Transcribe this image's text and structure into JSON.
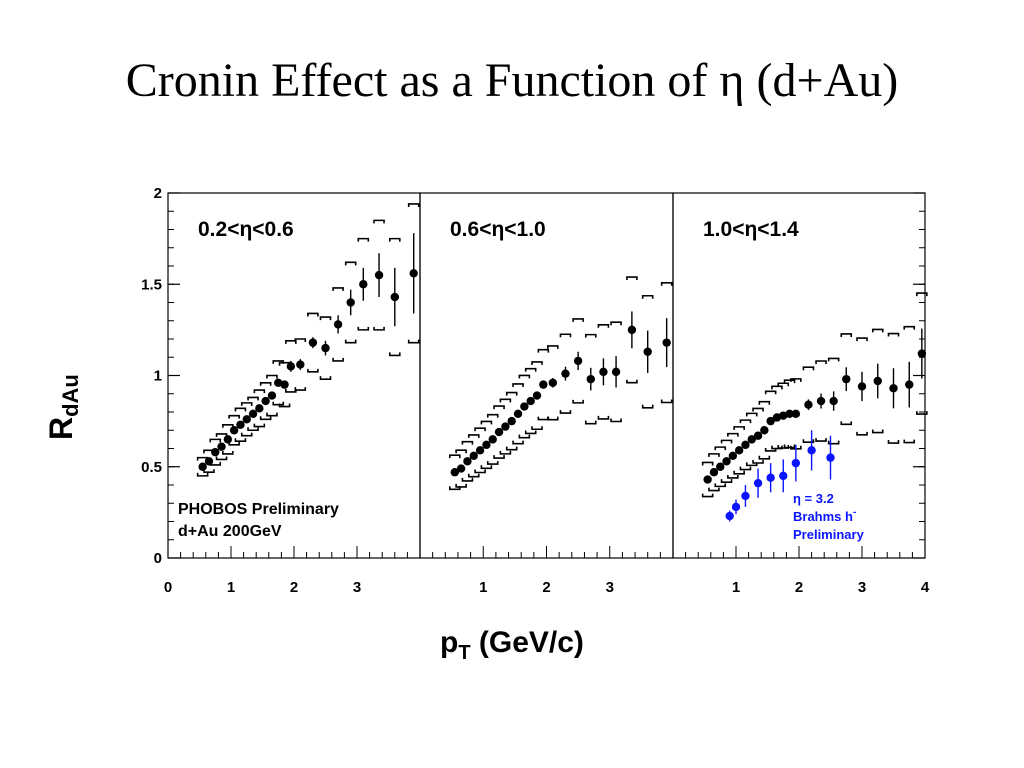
{
  "title": "Cronin Effect as a Function of η (d+Au)",
  "colors": {
    "series_main": "#000000",
    "series_brahms": "#0a14ff",
    "background": "#ffffff"
  },
  "chart_data": {
    "type": "scatter",
    "ylabel": {
      "main": "R",
      "sub": "dAu"
    },
    "xlabel": {
      "main": "p",
      "sub": "T",
      "rest": " (GeV/c)"
    },
    "ylim": [
      0,
      2
    ],
    "y_ticks": [
      "0",
      "0.5",
      "1",
      "1.5",
      "2"
    ],
    "grid": false,
    "panels": [
      {
        "label": "0.2<η<0.6",
        "xlim": [
          0,
          4.0
        ],
        "x_ticks": [
          "0",
          "1",
          "2",
          "3"
        ],
        "x_tick_values": [
          0,
          1,
          2,
          3
        ],
        "series": [
          {
            "x": [
              0.55,
              0.65,
              0.75,
              0.85,
              0.95,
              1.05,
              1.15,
              1.25,
              1.35,
              1.45,
              1.55,
              1.65,
              1.75,
              1.85,
              1.95,
              2.1,
              2.3,
              2.5,
              2.7,
              2.9,
              3.1,
              3.35,
              3.6,
              3.9
            ],
            "y": [
              0.5,
              0.53,
              0.58,
              0.61,
              0.65,
              0.7,
              0.73,
              0.76,
              0.79,
              0.82,
              0.86,
              0.89,
              0.96,
              0.95,
              1.05,
              1.06,
              1.18,
              1.15,
              1.28,
              1.4,
              1.5,
              1.55,
              1.43,
              1.56
            ],
            "stat_err": [
              0.02,
              0.02,
              0.02,
              0.02,
              0.02,
              0.02,
              0.02,
              0.02,
              0.02,
              0.02,
              0.02,
              0.02,
              0.02,
              0.02,
              0.03,
              0.03,
              0.03,
              0.04,
              0.05,
              0.07,
              0.09,
              0.12,
              0.16,
              0.22
            ],
            "sys_err": [
              0.05,
              0.06,
              0.07,
              0.07,
              0.08,
              0.08,
              0.09,
              0.09,
              0.09,
              0.1,
              0.1,
              0.11,
              0.12,
              0.12,
              0.14,
              0.14,
              0.16,
              0.17,
              0.2,
              0.22,
              0.25,
              0.3,
              0.32,
              0.38
            ]
          }
        ]
      },
      {
        "label": "0.6<η<1.0",
        "xlim": [
          0,
          4.0
        ],
        "x_ticks": [
          "1",
          "2",
          "3"
        ],
        "x_tick_values": [
          1,
          2,
          3
        ],
        "series": [
          {
            "x": [
              0.55,
              0.65,
              0.75,
              0.85,
              0.95,
              1.05,
              1.15,
              1.25,
              1.35,
              1.45,
              1.55,
              1.65,
              1.75,
              1.85,
              1.95,
              2.1,
              2.3,
              2.5,
              2.7,
              2.9,
              3.1,
              3.35,
              3.6,
              3.9
            ],
            "y": [
              0.47,
              0.49,
              0.53,
              0.56,
              0.59,
              0.62,
              0.65,
              0.69,
              0.72,
              0.75,
              0.79,
              0.83,
              0.86,
              0.89,
              0.95,
              0.96,
              1.01,
              1.08,
              0.98,
              1.02,
              1.02,
              1.25,
              1.13,
              1.18
            ]
          }
        ]
      },
      {
        "label": "1.0<η<1.4",
        "xlim": [
          0,
          4.0
        ],
        "x_ticks": [
          "1",
          "2",
          "3",
          "4"
        ],
        "x_tick_values": [
          1,
          2,
          3,
          4
        ],
        "series": [
          {
            "x": [
              0.55,
              0.65,
              0.75,
              0.85,
              0.95,
              1.05,
              1.15,
              1.25,
              1.35,
              1.45,
              1.55,
              1.65,
              1.75,
              1.85,
              1.95,
              2.15,
              2.35,
              2.55,
              2.75,
              3.0,
              3.25,
              3.5,
              3.75,
              3.95
            ],
            "y": [
              0.43,
              0.47,
              0.5,
              0.53,
              0.56,
              0.59,
              0.62,
              0.65,
              0.67,
              0.7,
              0.75,
              0.77,
              0.78,
              0.79,
              0.79,
              0.84,
              0.86,
              0.86,
              0.98,
              0.94,
              0.97,
              0.93,
              0.95,
              1.12
            ]
          }
        ],
        "brahms": {
          "x": [
            0.9,
            1.0,
            1.15,
            1.35,
            1.55,
            1.75,
            1.95,
            2.2,
            2.5
          ],
          "y": [
            0.23,
            0.28,
            0.34,
            0.41,
            0.44,
            0.45,
            0.52,
            0.59,
            0.55
          ],
          "err": [
            0.03,
            0.04,
            0.06,
            0.08,
            0.08,
            0.09,
            0.1,
            0.11,
            0.12
          ]
        }
      }
    ],
    "annotations": {
      "collab_line1": "PHOBOS Preliminary",
      "collab_line2": "d+Au 200GeV",
      "brahms_line1": "η = 3.2",
      "brahms_line2": "Brahms h",
      "brahms_line2_sup": "-",
      "brahms_line3": "Preliminary"
    }
  }
}
